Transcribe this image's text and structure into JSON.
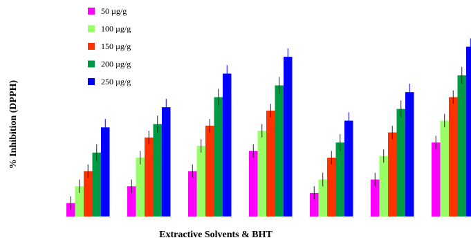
{
  "chart_data": {
    "type": "bar",
    "title": "",
    "xlabel": "Extractive Solvents & BHT",
    "ylabel": "% Inhibition (DPPH)",
    "ylim": [
      0,
      100
    ],
    "grid": false,
    "legend_position": "top-left",
    "categories": [
      "",
      "",
      "",
      "",
      "",
      "",
      ""
    ],
    "series": [
      {
        "name": "50 µg/g",
        "color": "#ff00ff",
        "values": [
          8,
          18,
          27,
          39,
          14,
          22,
          44
        ],
        "errors": [
          4,
          4,
          4,
          4,
          4,
          4,
          4
        ]
      },
      {
        "name": "100 µg/g",
        "color": "#99ff66",
        "values": [
          18,
          35,
          42,
          51,
          22,
          36,
          57
        ],
        "errors": [
          4,
          4,
          4,
          4,
          4,
          4,
          4
        ]
      },
      {
        "name": "150 µg/g",
        "color": "#ff3300",
        "values": [
          27,
          47,
          54,
          63,
          35,
          50,
          71
        ],
        "errors": [
          4,
          4,
          4,
          4,
          4,
          4,
          4
        ]
      },
      {
        "name": "200 µg/g",
        "color": "#009944",
        "values": [
          38,
          55,
          71,
          78,
          44,
          64,
          84
        ],
        "errors": [
          5,
          5,
          5,
          5,
          5,
          5,
          5
        ]
      },
      {
        "name": "250 µg/g",
        "color": "#0000ff",
        "values": [
          53,
          65,
          85,
          95,
          57,
          74,
          101
        ],
        "errors": [
          5,
          5,
          5,
          5,
          5,
          5,
          5
        ]
      }
    ]
  }
}
